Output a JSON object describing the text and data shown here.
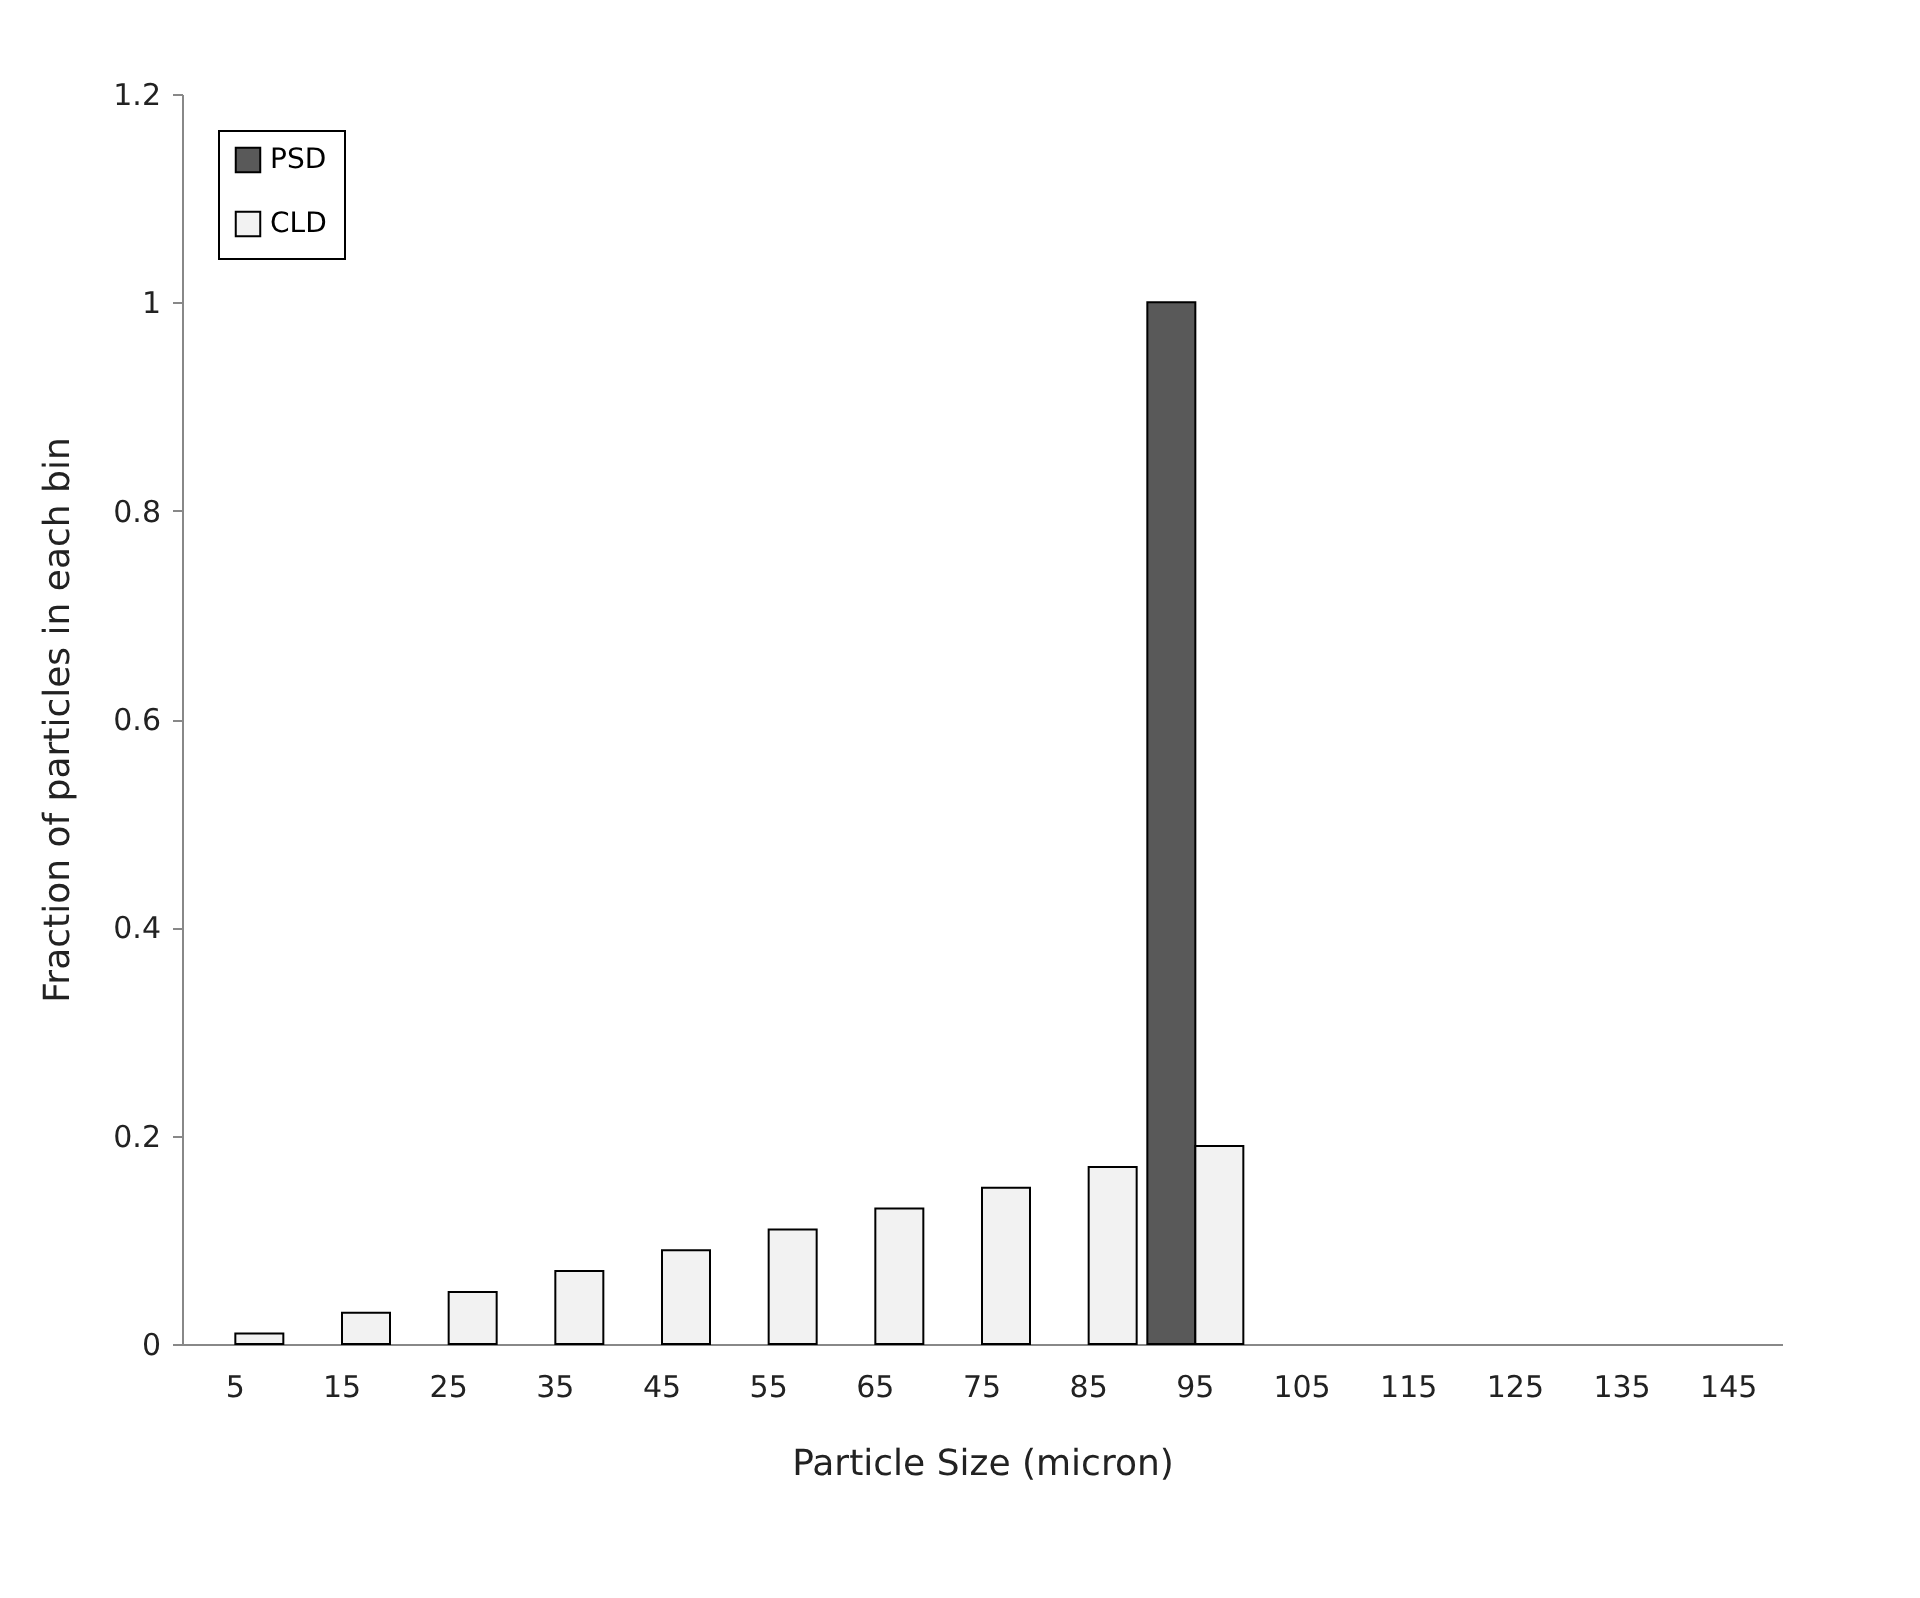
{
  "chart_data": {
    "type": "bar",
    "xlabel": "Particle Size (micron)",
    "ylabel": "Fraction of particles in each bin",
    "categories": [
      "5",
      "15",
      "25",
      "35",
      "45",
      "55",
      "65",
      "75",
      "85",
      "95",
      "105",
      "115",
      "125",
      "135",
      "145"
    ],
    "series": [
      {
        "name": "PSD",
        "color": "#595959",
        "values": [
          0,
          0,
          0,
          0,
          0,
          0,
          0,
          0,
          0,
          1,
          0,
          0,
          0,
          0,
          0
        ]
      },
      {
        "name": "CLD",
        "color": "#f2f2f2",
        "values": [
          0.01,
          0.03,
          0.05,
          0.07,
          0.09,
          0.11,
          0.13,
          0.15,
          0.17,
          0.19,
          0,
          0,
          0,
          0,
          0
        ]
      }
    ],
    "ylim": [
      0,
      1.2
    ],
    "yticks": [
      0,
      0.2,
      0.4,
      0.6,
      0.8,
      1,
      1.2
    ],
    "grid": false,
    "legend": "top left"
  }
}
